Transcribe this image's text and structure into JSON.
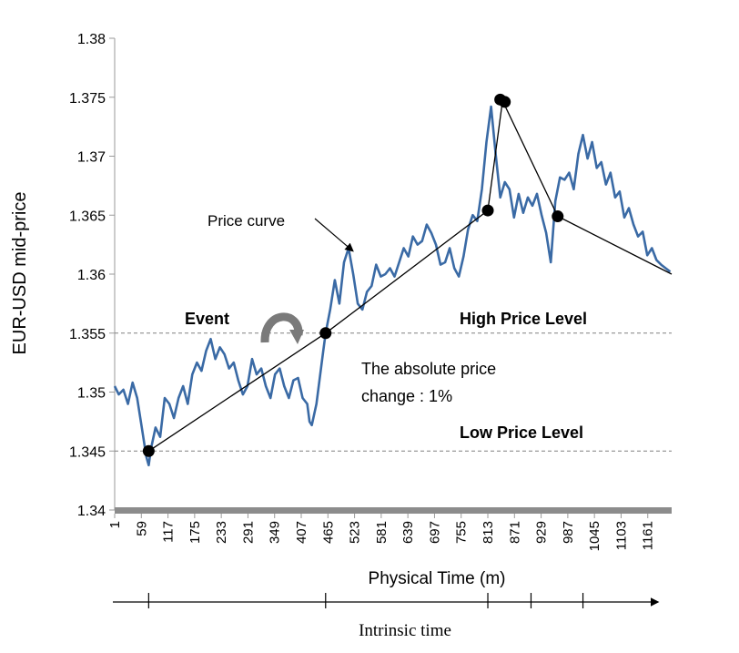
{
  "chart_data": {
    "type": "line",
    "ylabel": "EUR-USD mid-price",
    "xlabel": "Physical Time (m)",
    "ylim": [
      1.34,
      1.38
    ],
    "xlim": [
      1,
      1213
    ],
    "yticks": [
      "1.34",
      "1.345",
      "1.35",
      "1.355",
      "1.36",
      "1.365",
      "1.37",
      "1.375",
      "1.38"
    ],
    "xticks": [
      "1",
      "59",
      "117",
      "175",
      "233",
      "291",
      "349",
      "407",
      "465",
      "523",
      "581",
      "639",
      "697",
      "755",
      "813",
      "871",
      "929",
      "987",
      "1045",
      "1103",
      "1161"
    ],
    "grid": false,
    "series": [
      {
        "color": "#3a6aa5",
        "x": [
          1,
          10,
          20,
          30,
          40,
          50,
          60,
          70,
          75,
          80,
          90,
          100,
          110,
          120,
          130,
          140,
          150,
          160,
          170,
          180,
          190,
          200,
          210,
          220,
          230,
          240,
          250,
          260,
          270,
          280,
          290,
          300,
          310,
          320,
          330,
          340,
          350,
          360,
          370,
          380,
          390,
          400,
          410,
          420,
          425,
          430,
          440,
          450,
          455,
          460,
          470,
          480,
          490,
          500,
          510,
          520,
          530,
          540,
          550,
          560,
          570,
          580,
          590,
          600,
          610,
          620,
          630,
          640,
          650,
          660,
          670,
          680,
          690,
          700,
          710,
          720,
          730,
          740,
          750,
          760,
          770,
          780,
          790,
          800,
          810,
          820,
          830,
          840,
          850,
          860,
          870,
          880,
          890,
          900,
          910,
          920,
          930,
          940,
          950,
          960,
          970,
          980,
          990,
          1000,
          1010,
          1020,
          1030,
          1040,
          1050,
          1060,
          1070,
          1080,
          1090,
          1100,
          1110,
          1120,
          1130,
          1140,
          1150,
          1160,
          1170,
          1180,
          1190,
          1200,
          1210
        ],
        "y": [
          1.3505,
          1.3498,
          1.3502,
          1.349,
          1.3508,
          1.3495,
          1.347,
          1.3445,
          1.3438,
          1.3452,
          1.347,
          1.3462,
          1.3495,
          1.349,
          1.3478,
          1.3495,
          1.3505,
          1.349,
          1.3515,
          1.3525,
          1.3518,
          1.3535,
          1.3545,
          1.3528,
          1.3538,
          1.3532,
          1.352,
          1.3525,
          1.351,
          1.3498,
          1.3505,
          1.3528,
          1.3515,
          1.352,
          1.3505,
          1.3495,
          1.3515,
          1.352,
          1.3505,
          1.3495,
          1.351,
          1.3512,
          1.3495,
          1.349,
          1.3475,
          1.3472,
          1.349,
          1.352,
          1.3535,
          1.355,
          1.357,
          1.3595,
          1.3575,
          1.361,
          1.3622,
          1.36,
          1.3575,
          1.357,
          1.3585,
          1.359,
          1.3608,
          1.3598,
          1.36,
          1.3605,
          1.3598,
          1.361,
          1.3622,
          1.3615,
          1.3632,
          1.3625,
          1.3628,
          1.3642,
          1.3635,
          1.3625,
          1.3608,
          1.361,
          1.3622,
          1.3605,
          1.3598,
          1.3615,
          1.3638,
          1.365,
          1.3645,
          1.3672,
          1.3712,
          1.3742,
          1.3702,
          1.3665,
          1.3678,
          1.3672,
          1.3648,
          1.3668,
          1.3652,
          1.3665,
          1.3658,
          1.3668,
          1.365,
          1.3635,
          1.361,
          1.3662,
          1.3682,
          1.368,
          1.3686,
          1.3672,
          1.3702,
          1.3718,
          1.3698,
          1.3712,
          1.369,
          1.3695,
          1.3676,
          1.3686,
          1.3665,
          1.367,
          1.3648,
          1.3656,
          1.3642,
          1.3632,
          1.3636,
          1.3616,
          1.3622,
          1.3612,
          1.3608,
          1.3605,
          1.3602
        ]
      },
      {
        "color": "#000000",
        "x": [
          75,
          460,
          813,
          845,
          965,
          1213
        ],
        "y": [
          1.345,
          1.355,
          1.3654,
          1.3747,
          1.3649,
          1.36
        ]
      }
    ],
    "markers": [
      {
        "x": 75,
        "y": 1.345
      },
      {
        "x": 460,
        "y": 1.355
      },
      {
        "x": 813,
        "y": 1.3654
      },
      {
        "x": 840,
        "y": 1.3748
      },
      {
        "x": 850,
        "y": 1.3746
      },
      {
        "x": 965,
        "y": 1.3649
      }
    ],
    "reference_lines": [
      {
        "y": 1.355,
        "label": "High Price Level"
      },
      {
        "y": 1.345,
        "label": "Low Price Level"
      }
    ],
    "annotations": {
      "price_curve": "Price curve",
      "event": "Event",
      "abs_change_line1": "The absolute price",
      "abs_change_line2": "change : 1%"
    },
    "intrinsic_axis_label": "Intrinsic time",
    "intrinsic_ticks_x": [
      75,
      460,
      813,
      907,
      1020
    ]
  }
}
